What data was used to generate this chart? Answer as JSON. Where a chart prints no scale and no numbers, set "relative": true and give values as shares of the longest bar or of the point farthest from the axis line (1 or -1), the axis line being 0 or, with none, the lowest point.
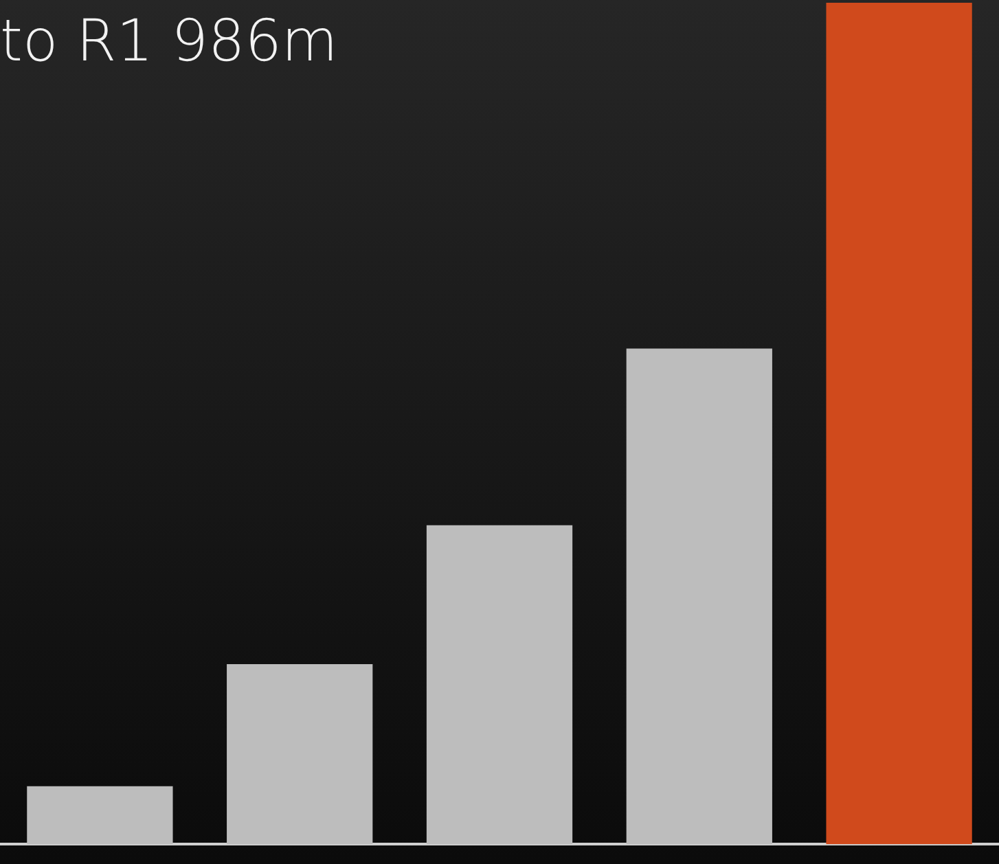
{
  "chart_data": {
    "type": "bar",
    "title": "to R1 986m",
    "relative": true,
    "categories": [
      null,
      null,
      null,
      null,
      null
    ],
    "values": [
      0.069,
      0.214,
      0.379,
      0.589,
      1
    ],
    "colors": [
      "#bdbdbd",
      "#bdbdbd",
      "#bdbdbd",
      "#bdbdbd",
      "#d04a1c"
    ],
    "legend": false
  }
}
